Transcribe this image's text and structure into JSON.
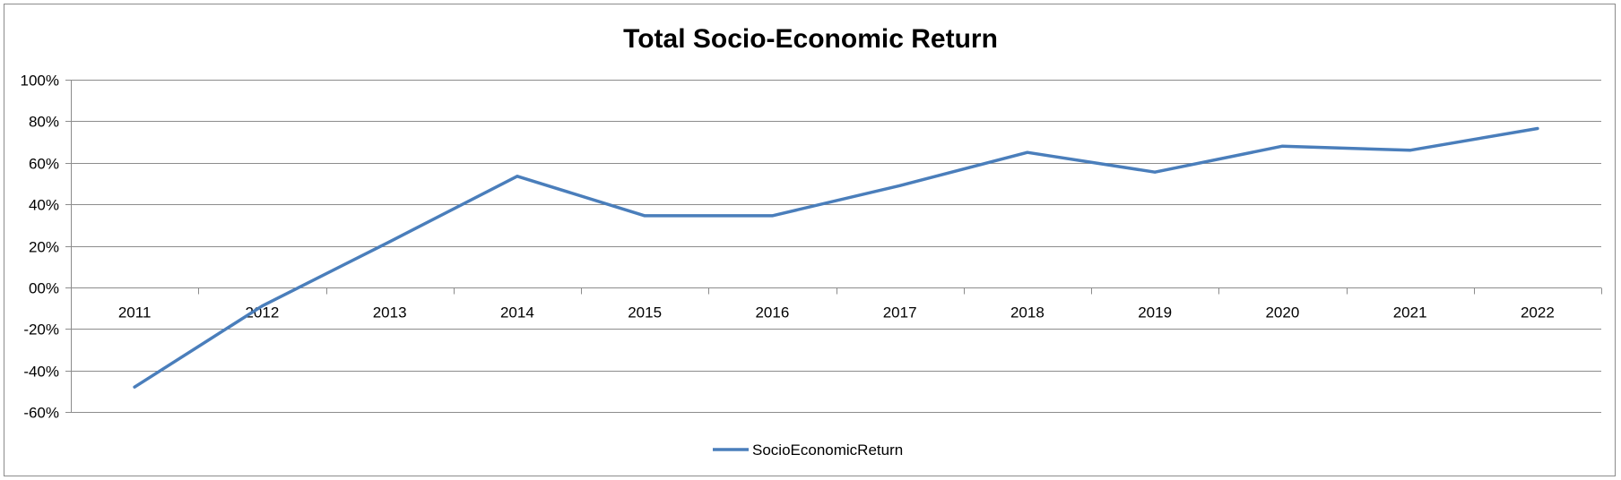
{
  "chart_data": {
    "type": "line",
    "title": "Total Socio-Economic Return",
    "xlabel": "",
    "ylabel": "",
    "categories": [
      "2011",
      "2012",
      "2013",
      "2014",
      "2015",
      "2016",
      "2017",
      "2018",
      "2019",
      "2020",
      "2021",
      "2022"
    ],
    "series": [
      {
        "name": "SocioEconomicReturn",
        "values": [
          -48,
          -9,
          22,
          53.5,
          34.5,
          34.5,
          49,
          65,
          55.5,
          68,
          66,
          76.5
        ],
        "color": "#4a7ebb"
      }
    ],
    "ylim": [
      -60,
      100
    ],
    "yticks": [
      100,
      80,
      60,
      40,
      20,
      0,
      -20,
      -40,
      -60
    ],
    "ytick_labels": [
      "100%",
      "80%",
      "60%",
      "40%",
      "20%",
      "00%",
      "-20%",
      "-40%",
      "-60%"
    ],
    "grid": true,
    "gridline_color": "#8c8c8c",
    "legend_position": "bottom"
  }
}
